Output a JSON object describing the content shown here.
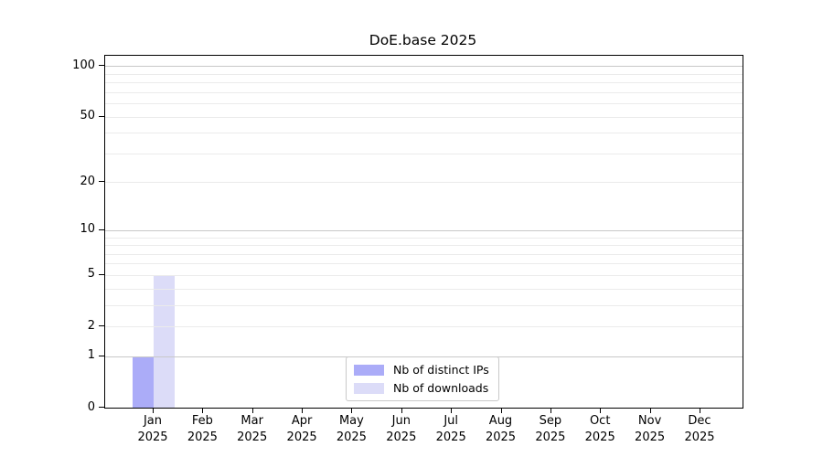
{
  "chart_data": {
    "type": "bar",
    "title": "DoE.base 2025",
    "categories": [
      "Jan",
      "Feb",
      "Mar",
      "Apr",
      "May",
      "Jun",
      "Jul",
      "Aug",
      "Sep",
      "Oct",
      "Nov",
      "Dec"
    ],
    "category_year": "2025",
    "series": [
      {
        "name": "Nb of distinct IPs",
        "color": "#abacf8",
        "values": [
          1,
          0,
          0,
          0,
          0,
          0,
          0,
          0,
          0,
          0,
          0,
          0
        ]
      },
      {
        "name": "Nb of downloads",
        "color": "#dcdcf8",
        "values": [
          5,
          0,
          0,
          0,
          0,
          0,
          0,
          0,
          0,
          0,
          0,
          0
        ]
      }
    ],
    "xlabel": "",
    "ylabel": "",
    "yscale": "log1p",
    "ylim": [
      0,
      115
    ],
    "y_major_ticks": [
      0,
      1,
      2,
      5,
      10,
      20,
      50,
      100
    ],
    "y_minor_gridlines": [
      3,
      4,
      6,
      7,
      8,
      9,
      30,
      40,
      60,
      70,
      80,
      90
    ],
    "grid": "horizontal",
    "legend_position": "lower center",
    "colors": {
      "background": "#ffffff",
      "axis": "#000000",
      "text": "#000000",
      "major_grid": "#c8c8c8",
      "light_grid": "#ebebeb",
      "emphasized_grid_values": [
        1,
        10,
        100
      ]
    }
  }
}
